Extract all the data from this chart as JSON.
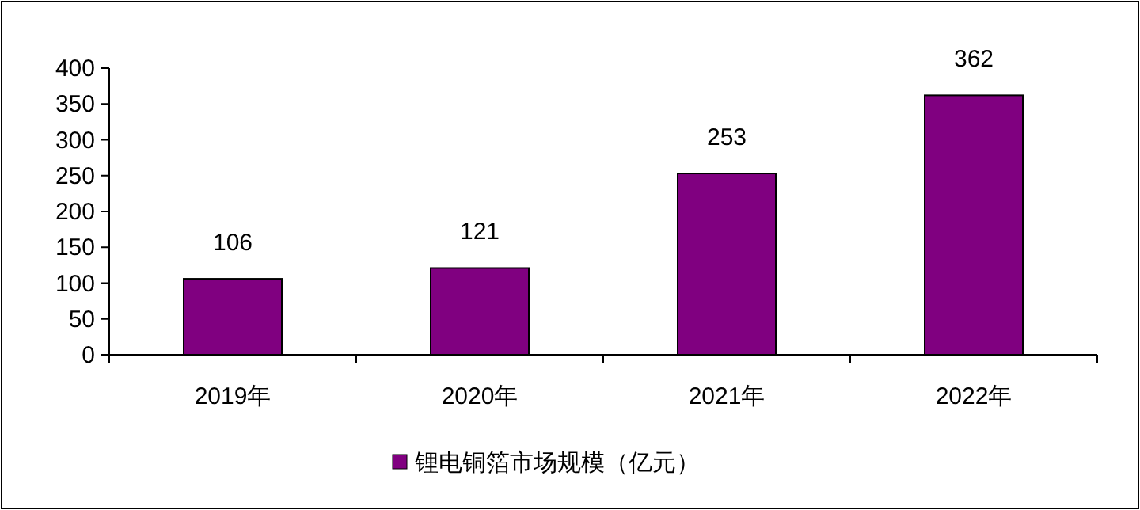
{
  "chart_data": {
    "type": "bar",
    "categories": [
      "2019年",
      "2020年",
      "2021年",
      "2022年"
    ],
    "series": [
      {
        "name": "锂电铜箔市场规模（亿元）",
        "color": "#800080",
        "values": [
          106,
          121,
          253,
          362
        ]
      }
    ],
    "ylim": [
      0,
      400
    ],
    "yticks": [
      0,
      50,
      100,
      150,
      200,
      250,
      300,
      350,
      400
    ],
    "data_labels": true,
    "legend": "bottom"
  }
}
